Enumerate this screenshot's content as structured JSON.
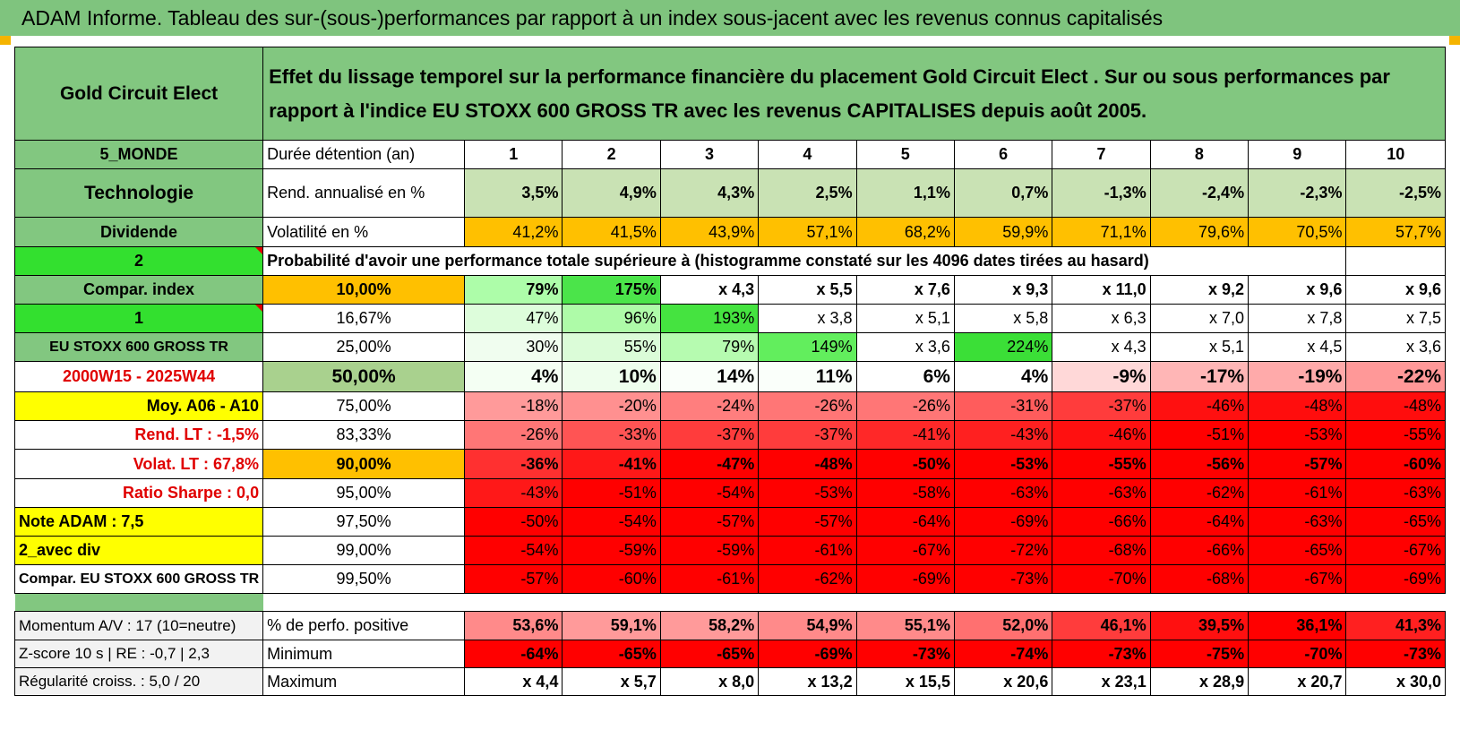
{
  "title": "ADAM Informe. Tableau des sur-(sous-)performances par rapport à un index sous-jacent avec les revenus connus capitalisés",
  "header": {
    "fund": "Gold Circuit Elect",
    "description": "Effet du lissage temporel sur la performance financière du placement Gold Circuit Elect . Sur ou sous performances par rapport à l'indice EU STOXX 600 GROSS TR avec les revenus CAPITALISES depuis août 2005."
  },
  "left": {
    "region": "5_MONDE",
    "sector": "Technologie",
    "dividend": "Dividende",
    "div_value": "2",
    "compar_index": "Compar. index",
    "compar_value": "1",
    "index_name": "EU STOXX 600 GROSS TR",
    "period": "2000W15 - 2025W44",
    "moy": "Moy. A06 - A10",
    "rend_lt": "Rend. LT :    -1,5%",
    "volat_lt": "Volat. LT :    67,8%",
    "sharpe": "Ratio Sharpe :    0,0",
    "note": "Note ADAM : 7,5",
    "avec_div": "2_avec div",
    "compar_eu": "Compar. EU STOXX 600 GROSS TR"
  },
  "labels": {
    "duree": "Durée détention (an)",
    "rend": "Rend. annualisé en %",
    "vol": "Volatilité en %",
    "prob": "Probabilité d'avoir une performance totale supérieure à (histogramme constaté sur les 4096 dates tirées au hasard)"
  },
  "years": [
    "1",
    "2",
    "3",
    "4",
    "5",
    "6",
    "7",
    "8",
    "9",
    "10"
  ],
  "rend": [
    "3,5%",
    "4,9%",
    "4,3%",
    "2,5%",
    "1,1%",
    "0,7%",
    "-1,3%",
    "-2,4%",
    "-2,3%",
    "-2,5%"
  ],
  "vol": [
    "41,2%",
    "41,5%",
    "43,9%",
    "57,1%",
    "68,2%",
    "59,9%",
    "71,1%",
    "79,6%",
    "70,5%",
    "57,7%"
  ],
  "percentiles": [
    {
      "pct": "10,00%",
      "vals": [
        "79%",
        "175%",
        "x 4,3",
        "x 5,5",
        "x 7,6",
        "x 9,3",
        "x 11,0",
        "x 9,2",
        "x 9,6",
        "x 9,6"
      ]
    },
    {
      "pct": "16,67%",
      "vals": [
        "47%",
        "96%",
        "193%",
        "x 3,8",
        "x 5,1",
        "x 5,8",
        "x 6,3",
        "x 7,0",
        "x 7,8",
        "x 7,5"
      ]
    },
    {
      "pct": "25,00%",
      "vals": [
        "30%",
        "55%",
        "79%",
        "149%",
        "x 3,6",
        "224%",
        "x 4,3",
        "x 5,1",
        "x 4,5",
        "x 3,6"
      ]
    },
    {
      "pct": "50,00%",
      "vals": [
        "4%",
        "10%",
        "14%",
        "11%",
        "6%",
        "4%",
        "-9%",
        "-17%",
        "-19%",
        "-22%"
      ]
    },
    {
      "pct": "75,00%",
      "vals": [
        "-18%",
        "-20%",
        "-24%",
        "-26%",
        "-26%",
        "-31%",
        "-37%",
        "-46%",
        "-48%",
        "-48%"
      ]
    },
    {
      "pct": "83,33%",
      "vals": [
        "-26%",
        "-33%",
        "-37%",
        "-37%",
        "-41%",
        "-43%",
        "-46%",
        "-51%",
        "-53%",
        "-55%"
      ]
    },
    {
      "pct": "90,00%",
      "vals": [
        "-36%",
        "-41%",
        "-47%",
        "-48%",
        "-50%",
        "-53%",
        "-55%",
        "-56%",
        "-57%",
        "-60%"
      ]
    },
    {
      "pct": "95,00%",
      "vals": [
        "-43%",
        "-51%",
        "-54%",
        "-53%",
        "-58%",
        "-63%",
        "-63%",
        "-62%",
        "-61%",
        "-63%"
      ]
    },
    {
      "pct": "97,50%",
      "vals": [
        "-50%",
        "-54%",
        "-57%",
        "-57%",
        "-64%",
        "-69%",
        "-66%",
        "-64%",
        "-63%",
        "-65%"
      ]
    },
    {
      "pct": "99,00%",
      "vals": [
        "-54%",
        "-59%",
        "-59%",
        "-61%",
        "-67%",
        "-72%",
        "-68%",
        "-66%",
        "-65%",
        "-67%"
      ]
    },
    {
      "pct": "99,50%",
      "vals": [
        "-57%",
        "-60%",
        "-61%",
        "-62%",
        "-69%",
        "-73%",
        "-70%",
        "-68%",
        "-67%",
        "-69%"
      ]
    }
  ],
  "bottom": {
    "momentum": "Momentum A/V : 17 (10=neutre)",
    "zscore": "Z-score 10 s | RE : -0,7 | 2,3",
    "regularite": "Régularité croiss. : 5,0 / 20",
    "pos_label": "% de perfo. positive",
    "min_label": "Minimum",
    "max_label": "Maximum",
    "pos": [
      "53,6%",
      "59,1%",
      "58,2%",
      "54,9%",
      "55,1%",
      "52,0%",
      "46,1%",
      "39,5%",
      "36,1%",
      "41,3%"
    ],
    "min": [
      "-64%",
      "-65%",
      "-65%",
      "-69%",
      "-73%",
      "-74%",
      "-73%",
      "-75%",
      "-70%",
      "-73%"
    ],
    "max": [
      "x 4,4",
      "x 5,7",
      "x 8,0",
      "x 13,2",
      "x 15,5",
      "x 20,6",
      "x 23,1",
      "x 28,9",
      "x 20,7",
      "x 30,0"
    ]
  }
}
